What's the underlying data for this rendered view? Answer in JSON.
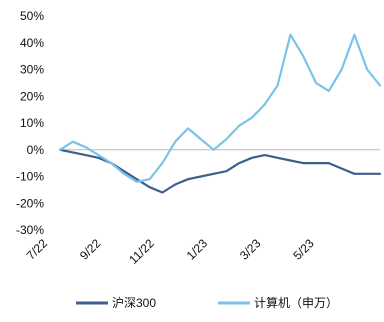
{
  "chart_data": {
    "type": "line",
    "title": "",
    "xlabel": "",
    "ylabel": "",
    "ylim": [
      -30,
      50
    ],
    "y_ticks": [
      "50%",
      "40%",
      "30%",
      "20%",
      "10%",
      "0%",
      "-10%",
      "-20%",
      "-30%"
    ],
    "y_tick_values": [
      50,
      40,
      30,
      20,
      10,
      0,
      -10,
      -20,
      -30
    ],
    "x_ticks": [
      "7/22",
      "9/22",
      "11/22",
      "1/23",
      "3/23",
      "5/23"
    ],
    "grid": false,
    "legend_placement": "bottom",
    "series": [
      {
        "name": "沪深300",
        "color": "#3d5f8f",
        "x": [
          0,
          4,
          8,
          12,
          16,
          20,
          24,
          28,
          32,
          36,
          40,
          44,
          48,
          52,
          56,
          60,
          64,
          68,
          72,
          76,
          80,
          84,
          88,
          92,
          96,
          100
        ],
        "values": [
          0,
          -1,
          -2,
          -3,
          -5,
          -8,
          -11,
          -14,
          -16,
          -13,
          -11,
          -10,
          -9,
          -8,
          -5,
          -3,
          -2,
          -3,
          -4,
          -5,
          -5,
          -5,
          -7,
          -9,
          -9,
          -9
        ]
      },
      {
        "name": "计算机（申万）",
        "color": "#7ac3ea",
        "x": [
          0,
          4,
          8,
          12,
          16,
          20,
          24,
          28,
          32,
          36,
          40,
          44,
          48,
          52,
          56,
          60,
          64,
          68,
          72,
          76,
          80,
          84,
          88,
          92,
          96,
          100
        ],
        "values": [
          0,
          3,
          1,
          -2,
          -5,
          -9,
          -12,
          -11,
          -5,
          3,
          8,
          4,
          0,
          4,
          9,
          12,
          17,
          24,
          43,
          35,
          25,
          22,
          30,
          43,
          30,
          24
        ]
      }
    ]
  }
}
